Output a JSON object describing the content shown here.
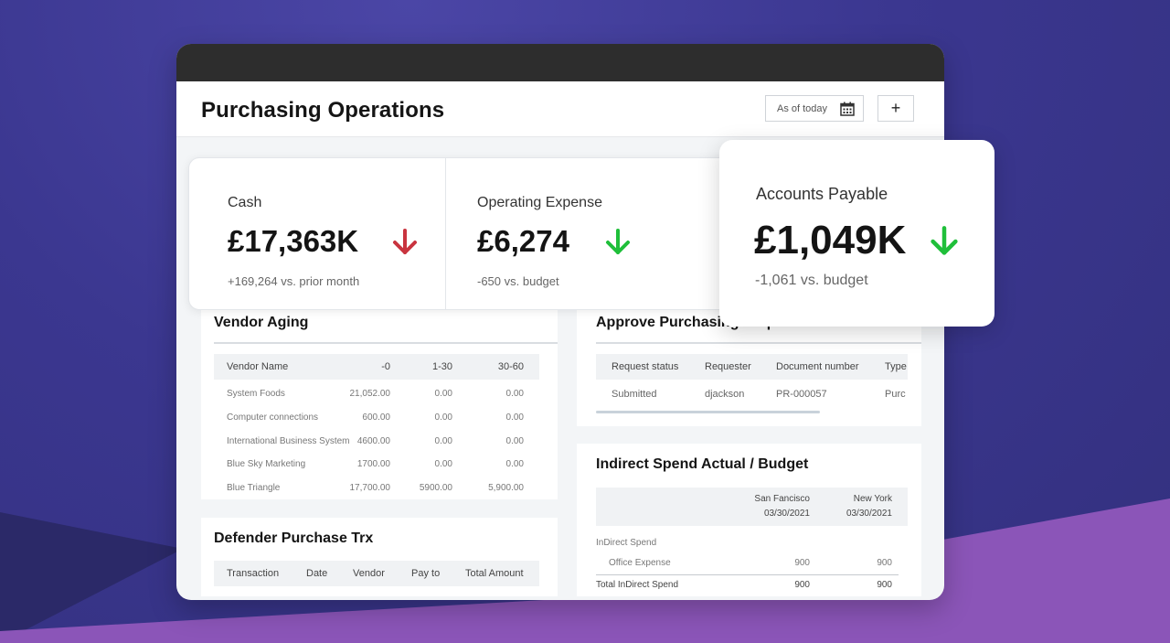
{
  "app": {
    "title": "Purchasing Operations",
    "date_filter": "As of today",
    "add_label": "+"
  },
  "kpis": [
    {
      "label": "Cash",
      "value": "£17,363K",
      "sub": "+169,264 vs. prior month",
      "trend": "down",
      "color": "#c9343f"
    },
    {
      "label": "Operating Expense",
      "value": "£6,274",
      "sub": "-650 vs. budget",
      "trend": "down",
      "color": "#1fbf3a"
    },
    {
      "label": "Accounts Payable",
      "value": "£1,049K",
      "sub": "-1,061 vs. budget",
      "trend": "down",
      "color": "#1fbf3a"
    }
  ],
  "vendor_aging": {
    "title": "Vendor Aging",
    "columns": [
      "Vendor Name",
      "-0",
      "1-30",
      "30-60"
    ],
    "rows": [
      [
        "System Foods",
        "21,052.00",
        "0.00",
        "0.00"
      ],
      [
        "Computer connections",
        "600.00",
        "0.00",
        "0.00"
      ],
      [
        "International Business System",
        "4600.00",
        "0.00",
        "0.00"
      ],
      [
        "Blue Sky Marketing",
        "1700.00",
        "0.00",
        "0.00"
      ],
      [
        "Blue Triangle",
        "17,700.00",
        "5900.00",
        "5,900.00"
      ]
    ]
  },
  "approve_purchasing": {
    "title": "Approve Purchasing Requisitions",
    "columns": [
      "Request status",
      "Requester",
      "Document number",
      "Type"
    ],
    "rows": [
      [
        "Submitted",
        "djackson",
        "PR-000057",
        "Purc"
      ]
    ]
  },
  "defender_purchase": {
    "title": "Defender Purchase Trx",
    "columns": [
      "Transaction",
      "Date",
      "Vendor",
      "Pay to",
      "Total Amount"
    ]
  },
  "indirect_spend": {
    "title": "Indirect Spend Actual / Budget",
    "headers": [
      {
        "city": "San Fancisco",
        "date": "03/30/2021"
      },
      {
        "city": "New York",
        "date": "03/30/2021"
      }
    ],
    "section": "InDirect Spend",
    "rows": [
      {
        "label": "Office Expense",
        "values": [
          "900",
          "900"
        ]
      }
    ],
    "total": {
      "label": "Total InDirect Spend",
      "values": [
        "900",
        "900"
      ]
    }
  },
  "colors": {
    "accent_red": "#c9343f",
    "accent_green": "#1fbf3a",
    "background_purple": "#3b3790",
    "band_purple": "#8b55b8"
  }
}
